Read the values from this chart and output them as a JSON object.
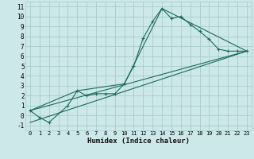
{
  "xlabel": "Humidex (Indice chaleur)",
  "bg_color": "#cce8e8",
  "grid_color": "#aacccc",
  "line_color": "#1a6b5a",
  "xlim": [
    -0.5,
    23.5
  ],
  "ylim": [
    -1.5,
    11.5
  ],
  "xticks": [
    0,
    1,
    2,
    3,
    4,
    5,
    6,
    7,
    8,
    9,
    10,
    11,
    12,
    13,
    14,
    15,
    16,
    17,
    18,
    19,
    20,
    21,
    22,
    23
  ],
  "yticks": [
    -1,
    0,
    1,
    2,
    3,
    4,
    5,
    6,
    7,
    8,
    9,
    10,
    11
  ],
  "series1_x": [
    0,
    1,
    2,
    4,
    5,
    6,
    7,
    8,
    9,
    10,
    11,
    12,
    13,
    14,
    15,
    16,
    17,
    18,
    19,
    20,
    21,
    22,
    23
  ],
  "series1_y": [
    0.5,
    -0.2,
    -0.7,
    1.0,
    2.5,
    2.0,
    2.2,
    2.2,
    2.2,
    3.2,
    5.0,
    7.8,
    9.5,
    10.8,
    9.8,
    10.0,
    9.2,
    8.5,
    7.7,
    6.7,
    6.5,
    6.5,
    6.5
  ],
  "series2_x": [
    0,
    5,
    10,
    14,
    23
  ],
  "series2_y": [
    0.5,
    2.5,
    3.2,
    10.8,
    6.5
  ],
  "series3_x": [
    0,
    23
  ],
  "series3_y": [
    0.5,
    6.5
  ],
  "series4_x": [
    0,
    23
  ],
  "series4_y": [
    -0.7,
    6.5
  ]
}
